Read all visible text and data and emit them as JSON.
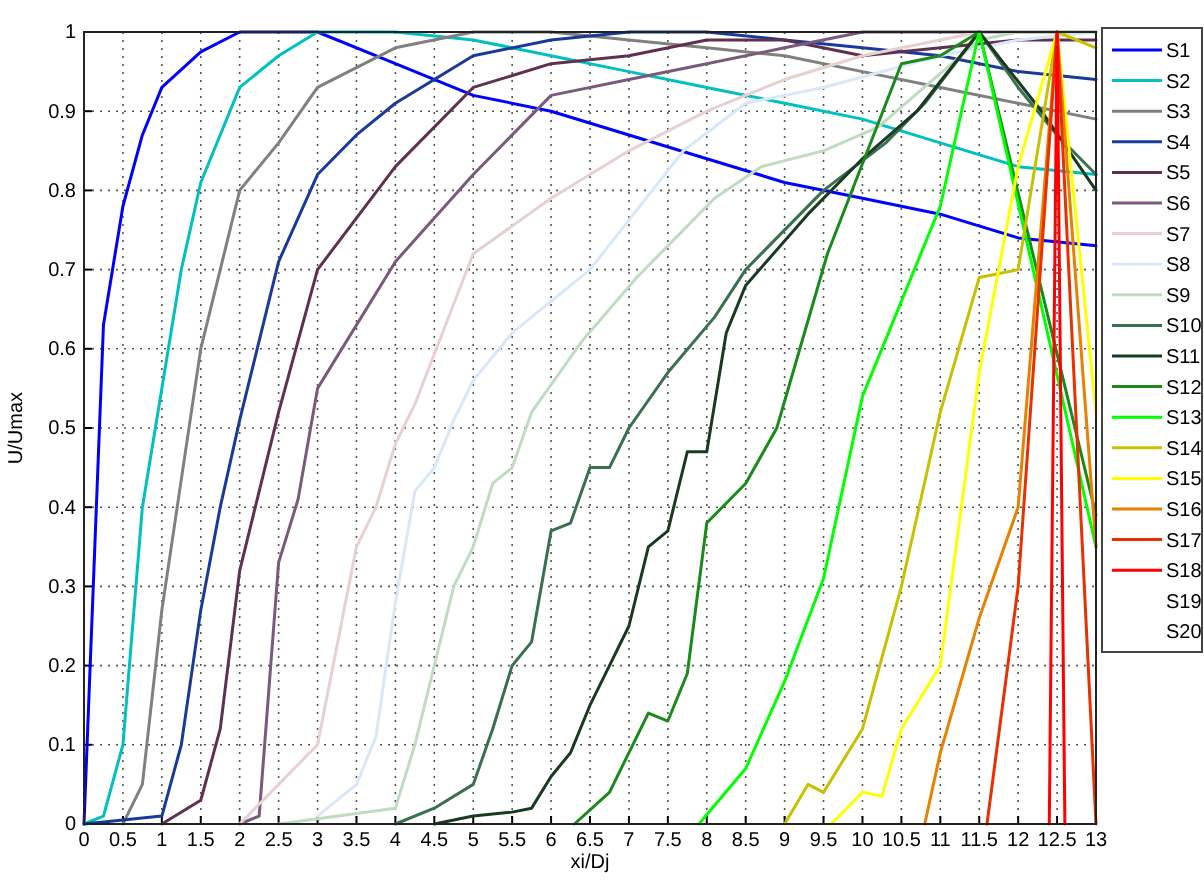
{
  "chart_data": {
    "type": "line",
    "xlabel": "xi/Dj",
    "ylabel": "U/Umax",
    "xlim": [
      0,
      13
    ],
    "ylim": [
      0,
      1
    ],
    "xticks": [
      0,
      0.5,
      1,
      1.5,
      2,
      2.5,
      3,
      3.5,
      4,
      4.5,
      5,
      5.5,
      6,
      6.5,
      7,
      7.5,
      8,
      8.5,
      9,
      9.5,
      10,
      10.5,
      11,
      11.5,
      12,
      12.5,
      13
    ],
    "yticks": [
      0,
      0.1,
      0.2,
      0.3,
      0.4,
      0.5,
      0.6,
      0.7,
      0.8,
      0.9,
      1
    ],
    "grid": true,
    "legend": "right",
    "line_style": "solid",
    "marker": "none",
    "series": [
      {
        "name": "S1",
        "color": "#0000ff",
        "x": [
          0,
          0.25,
          0.5,
          0.75,
          1,
          1.5,
          2,
          3,
          4,
          5,
          6,
          7,
          8,
          9,
          10,
          11,
          12,
          13
        ],
        "values": [
          0,
          0.63,
          0.78,
          0.87,
          0.93,
          0.975,
          1,
          1,
          0.96,
          0.92,
          0.9,
          0.87,
          0.84,
          0.81,
          0.79,
          0.77,
          0.74,
          0.73
        ]
      },
      {
        "name": "S2",
        "color": "#00c0c0",
        "x": [
          0,
          0.25,
          0.5,
          0.75,
          1,
          1.25,
          1.5,
          2,
          2.5,
          3,
          4,
          5,
          6,
          7,
          8,
          9,
          10,
          11,
          12,
          13
        ],
        "values": [
          0,
          0.01,
          0.1,
          0.4,
          0.55,
          0.7,
          0.81,
          0.93,
          0.97,
          1,
          1,
          0.99,
          0.97,
          0.95,
          0.93,
          0.91,
          0.89,
          0.86,
          0.83,
          0.82
        ]
      },
      {
        "name": "S3",
        "color": "#808080",
        "x": [
          0.5,
          0.75,
          1,
          1.5,
          2,
          2.5,
          3,
          4,
          5,
          6,
          7,
          8,
          9,
          10,
          11,
          12,
          13
        ],
        "values": [
          0,
          0.05,
          0.27,
          0.6,
          0.8,
          0.86,
          0.93,
          0.98,
          1,
          1,
          0.99,
          0.98,
          0.97,
          0.95,
          0.93,
          0.91,
          0.89
        ]
      },
      {
        "name": "S4",
        "color": "#1a3a9a",
        "x": [
          0,
          1,
          1.25,
          1.5,
          1.75,
          2,
          2.5,
          3,
          3.5,
          4,
          5,
          6,
          7,
          8,
          9,
          10,
          11,
          12,
          13
        ],
        "values": [
          0,
          0.01,
          0.1,
          0.27,
          0.4,
          0.51,
          0.71,
          0.82,
          0.87,
          0.91,
          0.97,
          0.99,
          1,
          1,
          0.99,
          0.98,
          0.97,
          0.95,
          0.94
        ]
      },
      {
        "name": "S5",
        "color": "#603050",
        "x": [
          1,
          1.5,
          1.75,
          2,
          2.5,
          3,
          4,
          5,
          6,
          7,
          8,
          9,
          10,
          11,
          12,
          13
        ],
        "values": [
          0,
          0.03,
          0.12,
          0.32,
          0.52,
          0.7,
          0.83,
          0.93,
          0.96,
          0.97,
          0.99,
          0.99,
          0.97,
          0.98,
          0.99,
          0.99
        ]
      },
      {
        "name": "S6",
        "color": "#7a5a7a",
        "x": [
          2,
          2.25,
          2.5,
          2.75,
          3,
          4,
          5,
          6,
          7,
          8,
          9,
          10,
          11,
          12,
          13
        ],
        "values": [
          0,
          0.01,
          0.33,
          0.41,
          0.55,
          0.71,
          0.82,
          0.92,
          0.94,
          0.96,
          0.98,
          1,
          1,
          1,
          1
        ]
      },
      {
        "name": "S7",
        "color": "#e8d0d0",
        "x": [
          2,
          2.5,
          3,
          3.5,
          3.75,
          4,
          4.25,
          5,
          6,
          7,
          8,
          9,
          10,
          11,
          11.5,
          12,
          13
        ],
        "values": [
          0,
          0.05,
          0.1,
          0.35,
          0.4,
          0.48,
          0.53,
          0.72,
          0.79,
          0.85,
          0.9,
          0.94,
          0.97,
          0.99,
          1,
          1,
          1
        ]
      },
      {
        "name": "S8",
        "color": "#d8e8f8",
        "x": [
          3,
          3.5,
          3.75,
          4,
          4.25,
          4.5,
          4.75,
          5,
          5.5,
          6,
          6.5,
          7.7,
          8.5,
          9.5,
          11,
          12,
          13
        ],
        "values": [
          0.01,
          0.05,
          0.11,
          0.28,
          0.42,
          0.45,
          0.51,
          0.56,
          0.62,
          0.66,
          0.7,
          0.85,
          0.91,
          0.93,
          0.97,
          0.99,
          1
        ]
      },
      {
        "name": "S9",
        "color": "#c0dcc0",
        "x": [
          2.5,
          4,
          4.25,
          4.5,
          4.75,
          5,
          5.25,
          5.5,
          5.75,
          6.4,
          7.1,
          7.5,
          8.1,
          8.7,
          9.5,
          10.2,
          11.5,
          12,
          13
        ],
        "values": [
          0,
          0.02,
          0.1,
          0.2,
          0.3,
          0.35,
          0.43,
          0.45,
          0.52,
          0.61,
          0.69,
          0.73,
          0.79,
          0.83,
          0.85,
          0.88,
          0.99,
          1,
          1
        ]
      },
      {
        "name": "S10",
        "color": "#3a7050",
        "x": [
          4,
          4.5,
          5,
          5.25,
          5.5,
          5.75,
          6,
          6.25,
          6.5,
          6.75,
          7,
          7.5,
          8.1,
          8.5,
          9.5,
          10.3,
          10.8,
          11.5,
          12,
          12.5,
          13
        ],
        "values": [
          0,
          0.02,
          0.05,
          0.12,
          0.2,
          0.23,
          0.37,
          0.38,
          0.45,
          0.45,
          0.5,
          0.57,
          0.64,
          0.7,
          0.8,
          0.86,
          0.91,
          1,
          0.93,
          0.87,
          0.82
        ]
      },
      {
        "name": "S11",
        "color": "#1a3a20",
        "x": [
          4.5,
          5,
          5.5,
          5.75,
          6,
          6.25,
          6.5,
          6.75,
          7,
          7.25,
          7.5,
          7.75,
          8,
          8.25,
          8.5,
          9.3,
          10,
          10.7,
          11.5,
          12.3,
          13
        ],
        "values": [
          0,
          0.01,
          0.015,
          0.02,
          0.06,
          0.09,
          0.15,
          0.2,
          0.25,
          0.35,
          0.37,
          0.47,
          0.47,
          0.62,
          0.68,
          0.77,
          0.84,
          0.9,
          1,
          0.9,
          0.8
        ]
      },
      {
        "name": "S12",
        "color": "#1a8a1a",
        "x": [
          6.3,
          6.75,
          7.25,
          7.5,
          7.75,
          8,
          8.5,
          8.9,
          9.55,
          10.5,
          11,
          11.5,
          13
        ],
        "values": [
          0,
          0.04,
          0.14,
          0.13,
          0.19,
          0.38,
          0.43,
          0.5,
          0.72,
          0.96,
          0.97,
          1,
          0.39
        ]
      },
      {
        "name": "S13",
        "color": "#00ff00",
        "x": [
          7.9,
          8.5,
          9,
          9.5,
          10,
          11,
          11.5,
          13
        ],
        "values": [
          0,
          0.07,
          0.18,
          0.31,
          0.54,
          0.78,
          1,
          0.35
        ]
      },
      {
        "name": "S14",
        "color": "#c8c000",
        "x": [
          9,
          9.3,
          9.5,
          10,
          10.5,
          11,
          11.5,
          12,
          12.5,
          13
        ],
        "values": [
          0,
          0.05,
          0.04,
          0.12,
          0.3,
          0.52,
          0.69,
          0.7,
          1,
          0.98
        ]
      },
      {
        "name": "S15",
        "color": "#ffff00",
        "x": [
          9.6,
          10,
          10.25,
          10.5,
          11,
          11.5,
          12,
          12.5,
          13
        ],
        "values": [
          0,
          0.04,
          0.035,
          0.12,
          0.2,
          0.57,
          0.83,
          1,
          0.52
        ]
      },
      {
        "name": "S16",
        "color": "#e88000",
        "x": [
          10.8,
          11,
          11.5,
          12,
          12.5,
          13
        ],
        "values": [
          0,
          0.09,
          0.26,
          0.4,
          1,
          0.35
        ]
      },
      {
        "name": "S17",
        "color": "#e83000",
        "x": [
          11.6,
          12,
          12.5,
          13
        ],
        "values": [
          0,
          0.3,
          1,
          0
        ]
      },
      {
        "name": "S18",
        "color": "#ff0000",
        "x": [
          12.4,
          12.5,
          12.6
        ],
        "values": [
          0,
          1,
          0
        ]
      },
      {
        "name": "S19"
      },
      {
        "name": "S20"
      }
    ]
  }
}
